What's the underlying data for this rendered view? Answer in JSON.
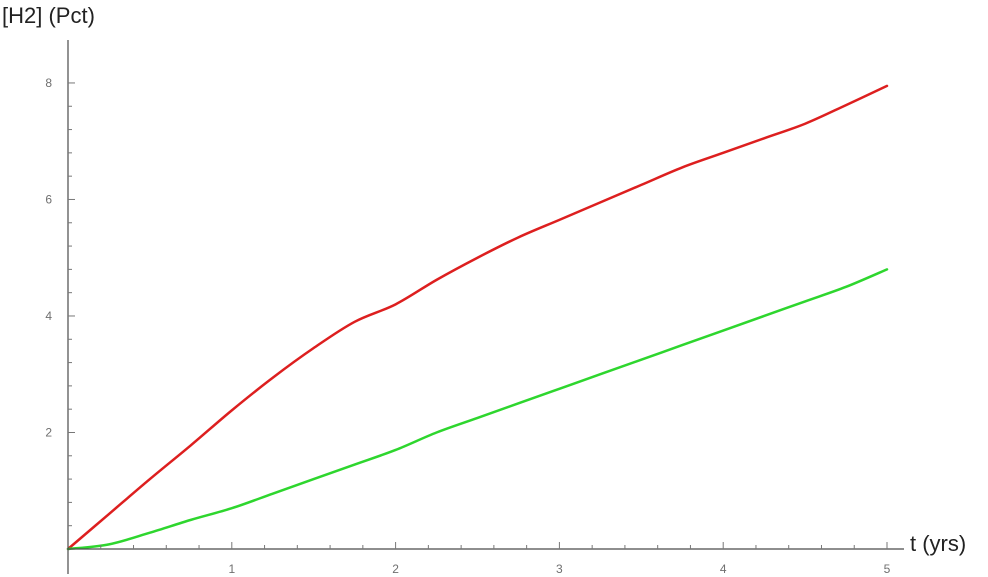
{
  "chart_data": {
    "type": "line",
    "title": "",
    "xlabel": "t (yrs)",
    "ylabel": "[H2] (Pct)",
    "xlim": [
      0,
      5
    ],
    "ylim": [
      0,
      8.6
    ],
    "xticks": [
      1,
      2,
      3,
      4,
      5
    ],
    "yticks": [
      2,
      4,
      6,
      8
    ],
    "xtick_labels": [
      "1",
      "2",
      "3",
      "4",
      "5"
    ],
    "ytick_labels": [
      "2",
      "4",
      "6",
      "8"
    ],
    "grid": false,
    "legend": "none",
    "series": [
      {
        "color": "#dd1f1f",
        "points": [
          [
            0,
            0
          ],
          [
            0.25,
            0.6
          ],
          [
            0.5,
            1.2
          ],
          [
            0.75,
            1.78
          ],
          [
            1,
            2.38
          ],
          [
            1.25,
            2.94
          ],
          [
            1.5,
            3.45
          ],
          [
            1.75,
            3.9
          ],
          [
            2,
            4.2
          ],
          [
            2.25,
            4.62
          ],
          [
            2.5,
            5.0
          ],
          [
            2.75,
            5.35
          ],
          [
            3,
            5.65
          ],
          [
            3.25,
            5.95
          ],
          [
            3.5,
            6.25
          ],
          [
            3.75,
            6.55
          ],
          [
            4,
            6.8
          ],
          [
            4.25,
            7.05
          ],
          [
            4.5,
            7.3
          ],
          [
            4.75,
            7.62
          ],
          [
            5,
            7.95
          ]
        ]
      },
      {
        "color": "#2ed62e",
        "points": [
          [
            0,
            0
          ],
          [
            0.25,
            0.08
          ],
          [
            0.5,
            0.28
          ],
          [
            0.75,
            0.5
          ],
          [
            1,
            0.7
          ],
          [
            1.25,
            0.95
          ],
          [
            1.5,
            1.2
          ],
          [
            1.75,
            1.45
          ],
          [
            2,
            1.7
          ],
          [
            2.25,
            2.0
          ],
          [
            2.5,
            2.25
          ],
          [
            2.75,
            2.5
          ],
          [
            3,
            2.75
          ],
          [
            3.25,
            3.0
          ],
          [
            3.5,
            3.25
          ],
          [
            3.75,
            3.5
          ],
          [
            4,
            3.75
          ],
          [
            4.25,
            4.0
          ],
          [
            4.5,
            4.25
          ],
          [
            4.75,
            4.5
          ],
          [
            5,
            4.8
          ]
        ]
      }
    ]
  }
}
